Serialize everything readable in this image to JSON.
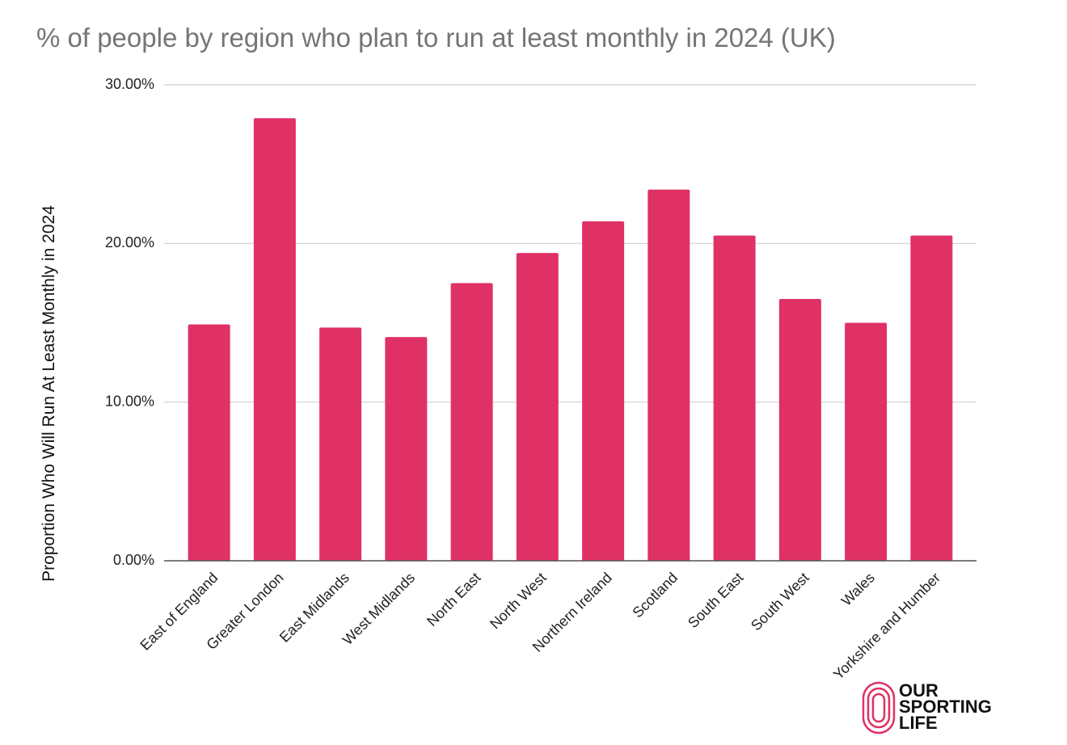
{
  "chart_data": {
    "type": "bar",
    "title": "% of people by region who plan to run at least monthly in 2024 (UK)",
    "y_label": "Proportion Who Will Run At Least Monthly in 2024",
    "categories": [
      "East of England",
      "Greater London",
      "East Midlands",
      "West Midlands",
      "North East",
      "North West",
      "Northern Ireland",
      "Scotland",
      "South East",
      "South West",
      "Wales",
      "Yorkshire and Humber"
    ],
    "values": [
      14.9,
      27.9,
      14.7,
      14.1,
      17.5,
      19.4,
      21.4,
      23.4,
      20.5,
      16.5,
      15.0,
      20.5
    ],
    "color": "#e03166",
    "ylim": [
      0,
      30
    ],
    "yticks": [
      {
        "value": 0,
        "label": "0.00%"
      },
      {
        "value": 10,
        "label": "10.00%"
      },
      {
        "value": 20,
        "label": "20.00%"
      },
      {
        "value": 30,
        "label": "30.00%"
      }
    ],
    "grid": true
  },
  "logo": {
    "lines": [
      "OUR",
      "SPORTING",
      "LIFE"
    ]
  }
}
